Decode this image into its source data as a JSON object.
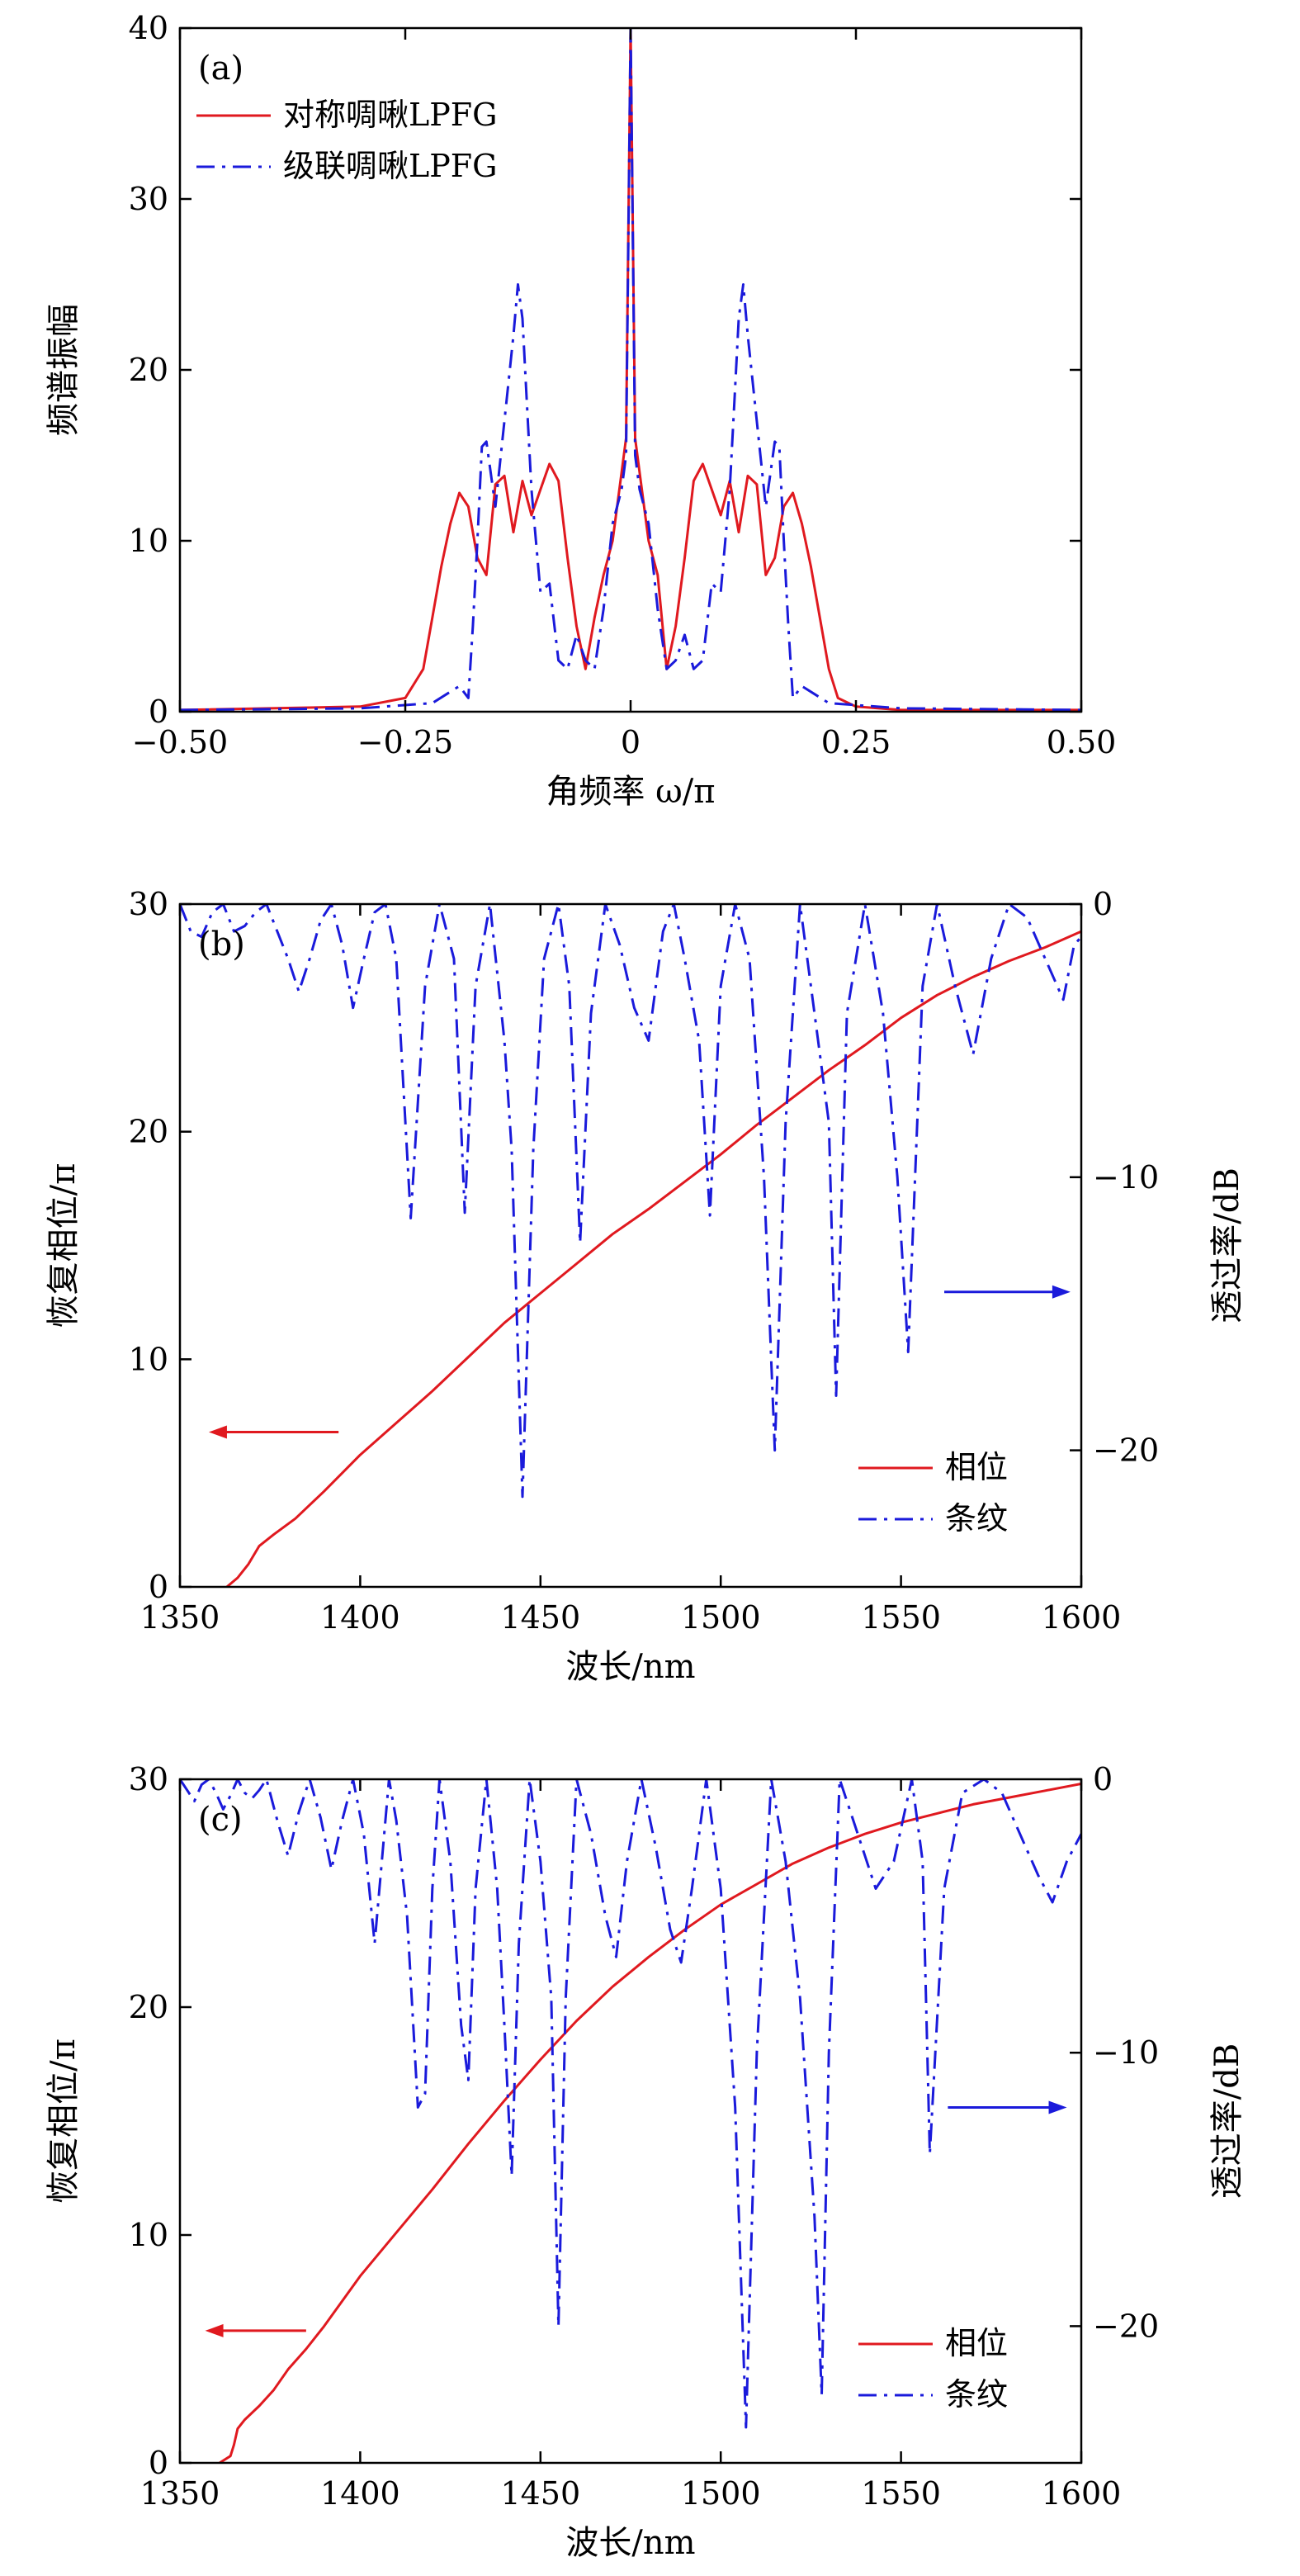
{
  "chart_data": [
    {
      "type": "line",
      "panel_label": "(a)",
      "title": "",
      "xlabel": "角频率 ω/π",
      "ylabel": "频谱振幅",
      "xlim": [
        -0.5,
        0.5
      ],
      "ylim": [
        0,
        40
      ],
      "xticks": [
        -0.5,
        -0.25,
        0,
        0.25,
        0.5
      ],
      "xtick_labels": [
        "−0.50",
        "−0.25",
        "0",
        "0.25",
        "0.50"
      ],
      "yticks": [
        0,
        10,
        20,
        30,
        40
      ],
      "ytick_labels": [
        "0",
        "10",
        "20",
        "30",
        "40"
      ],
      "legend_position": "top-left",
      "series": [
        {
          "name": "对称啁啾LPFG",
          "color": "#e0191f",
          "style": "solid",
          "x": [
            -0.5,
            -0.3,
            -0.25,
            -0.23,
            -0.22,
            -0.21,
            -0.2,
            -0.19,
            -0.18,
            -0.17,
            -0.16,
            -0.15,
            -0.14,
            -0.13,
            -0.12,
            -0.11,
            -0.1,
            -0.09,
            -0.08,
            -0.07,
            -0.06,
            -0.05,
            -0.04,
            -0.03,
            -0.02,
            -0.01,
            -0.005,
            0,
            0.005,
            0.01,
            0.02,
            0.03,
            0.04,
            0.05,
            0.06,
            0.07,
            0.08,
            0.09,
            0.1,
            0.11,
            0.12,
            0.13,
            0.14,
            0.15,
            0.16,
            0.17,
            0.18,
            0.19,
            0.2,
            0.21,
            0.22,
            0.23,
            0.25,
            0.3,
            0.5
          ],
          "values": [
            0.1,
            0.3,
            0.8,
            2.5,
            5.5,
            8.5,
            11,
            12.8,
            12,
            9,
            8,
            13.3,
            13.8,
            10.5,
            13.5,
            11.5,
            13,
            14.5,
            13.5,
            9,
            5,
            2.5,
            5.5,
            8,
            10,
            14,
            16,
            40,
            16,
            14,
            10,
            8,
            2.5,
            5,
            9,
            13.5,
            14.5,
            13,
            11.5,
            13.5,
            10.5,
            13.8,
            13.3,
            8,
            9,
            12,
            12.8,
            11,
            8.5,
            5.5,
            2.5,
            0.8,
            0.3,
            0.1,
            0.1
          ]
        },
        {
          "name": "级联啁啾LPFG",
          "color": "#1a1adb",
          "style": "dashdot",
          "x": [
            -0.5,
            -0.3,
            -0.22,
            -0.19,
            -0.18,
            -0.175,
            -0.17,
            -0.165,
            -0.16,
            -0.15,
            -0.14,
            -0.13,
            -0.125,
            -0.12,
            -0.115,
            -0.11,
            -0.105,
            -0.1,
            -0.09,
            -0.08,
            -0.07,
            -0.06,
            -0.05,
            -0.04,
            -0.03,
            -0.02,
            -0.01,
            -0.005,
            0,
            0.005,
            0.01,
            0.02,
            0.03,
            0.04,
            0.05,
            0.06,
            0.07,
            0.08,
            0.09,
            0.1,
            0.105,
            0.11,
            0.115,
            0.12,
            0.125,
            0.13,
            0.14,
            0.15,
            0.16,
            0.165,
            0.17,
            0.175,
            0.18,
            0.19,
            0.22,
            0.3,
            0.5
          ],
          "values": [
            0.1,
            0.2,
            0.5,
            1.5,
            0.8,
            5,
            10,
            15.5,
            15.8,
            12,
            17,
            22,
            25,
            23,
            18,
            13,
            10,
            7,
            7.5,
            3,
            2.5,
            4.5,
            3,
            2.5,
            6,
            11,
            13,
            15,
            40,
            15,
            13,
            11,
            6,
            2.5,
            3,
            4.5,
            2.5,
            3,
            7.5,
            7,
            10,
            13,
            18,
            23,
            25,
            22,
            17,
            12,
            15.8,
            15.5,
            10,
            5,
            0.8,
            1.5,
            0.5,
            0.2,
            0.1
          ]
        }
      ]
    },
    {
      "type": "line",
      "panel_label": "(b)",
      "title": "",
      "xlabel": "波长/nm",
      "ylabel": "恢复相位/π",
      "y2label": "透过率/dB",
      "xlim": [
        1350,
        1600
      ],
      "ylim": [
        0,
        30
      ],
      "y2lim": [
        -25,
        0
      ],
      "xticks": [
        1350,
        1400,
        1450,
        1500,
        1550,
        1600
      ],
      "xtick_labels": [
        "1350",
        "1400",
        "1450",
        "1500",
        "1550",
        "1600"
      ],
      "yticks": [
        0,
        10,
        20,
        30
      ],
      "ytick_labels": [
        "0",
        "10",
        "20",
        "30"
      ],
      "y2ticks": [
        0,
        -10,
        -20
      ],
      "y2tick_labels": [
        "0",
        "−10",
        "−20"
      ],
      "legend_position": "bottom-right",
      "arrows": [
        {
          "from_x": 1394,
          "to_x": 1358,
          "y": 6.8,
          "axis": "left",
          "color": "#e0191f"
        },
        {
          "from_x": 1562,
          "to_x": 1597,
          "y": -14.2,
          "axis": "right",
          "color": "#1a1adb"
        }
      ],
      "series": [
        {
          "name": "相位",
          "axis": "left",
          "color": "#e0191f",
          "style": "solid",
          "x": [
            1363,
            1366,
            1369,
            1372,
            1376,
            1382,
            1390,
            1400,
            1410,
            1420,
            1430,
            1440,
            1450,
            1460,
            1470,
            1480,
            1490,
            1500,
            1510,
            1520,
            1530,
            1540,
            1550,
            1560,
            1570,
            1580,
            1590,
            1600
          ],
          "values": [
            0,
            0.4,
            1.0,
            1.8,
            2.3,
            3.0,
            4.2,
            5.8,
            7.2,
            8.6,
            10.1,
            11.6,
            12.9,
            14.2,
            15.5,
            16.6,
            17.8,
            19.0,
            20.3,
            21.5,
            22.7,
            23.8,
            25.0,
            26.0,
            26.8,
            27.5,
            28.1,
            28.8
          ]
        },
        {
          "name": "条纹",
          "axis": "right",
          "color": "#1a1adb",
          "style": "dashdot",
          "x": [
            1350,
            1353,
            1356,
            1359,
            1362,
            1365,
            1368,
            1371,
            1374,
            1377,
            1380,
            1383,
            1386,
            1389,
            1392,
            1395,
            1398,
            1401,
            1404,
            1407,
            1410,
            1414,
            1418,
            1422,
            1426,
            1429,
            1432,
            1436,
            1440,
            1442,
            1445,
            1448,
            1451,
            1455,
            1458,
            1461,
            1464,
            1468,
            1472,
            1476,
            1480,
            1484,
            1487,
            1490,
            1494,
            1497,
            1500,
            1504,
            1508,
            1512,
            1515,
            1518,
            1522,
            1526,
            1530,
            1532,
            1535,
            1540,
            1545,
            1549,
            1552,
            1556,
            1560,
            1565,
            1570,
            1575,
            1580,
            1585,
            1590,
            1595,
            1598,
            1600
          ],
          "values": [
            0,
            -1,
            -1.2,
            -0.3,
            0,
            -1,
            -0.8,
            -0.3,
            0,
            -1,
            -2,
            -3.2,
            -2,
            -0.6,
            0,
            -1.5,
            -3.8,
            -2,
            -0.3,
            0,
            -2,
            -11.5,
            -3,
            0,
            -2,
            -11.3,
            -3,
            0,
            -5,
            -9,
            -21.7,
            -9,
            -2,
            0,
            -3,
            -12.4,
            -4,
            0,
            -1.5,
            -3.8,
            -5,
            -1,
            0,
            -2,
            -5,
            -11.4,
            -3,
            0,
            -2,
            -10,
            -20,
            -8,
            0,
            -4,
            -8,
            -18,
            -4,
            0,
            -4,
            -10,
            -16.4,
            -3,
            0,
            -3,
            -5.5,
            -2,
            0,
            -0.5,
            -2,
            -3.5,
            -1.5,
            -1.2
          ]
        }
      ]
    },
    {
      "type": "line",
      "panel_label": "(c)",
      "title": "",
      "xlabel": "波长/nm",
      "ylabel": "恢复相位/π",
      "y2label": "透过率/dB",
      "xlim": [
        1350,
        1600
      ],
      "ylim": [
        0,
        30
      ],
      "y2lim": [
        -25,
        0
      ],
      "xticks": [
        1350,
        1400,
        1450,
        1500,
        1550,
        1600
      ],
      "xtick_labels": [
        "1350",
        "1400",
        "1450",
        "1500",
        "1550",
        "1600"
      ],
      "yticks": [
        0,
        10,
        20,
        30
      ],
      "ytick_labels": [
        "0",
        "10",
        "20",
        "30"
      ],
      "y2ticks": [
        0,
        -10,
        -20
      ],
      "y2tick_labels": [
        "0",
        "−10",
        "−20"
      ],
      "legend_position": "bottom-right",
      "arrows": [
        {
          "from_x": 1385,
          "to_x": 1357,
          "y": 5.8,
          "axis": "left",
          "color": "#e0191f"
        },
        {
          "from_x": 1563,
          "to_x": 1596,
          "y": -12.0,
          "axis": "right",
          "color": "#1a1adb"
        }
      ],
      "series": [
        {
          "name": "相位",
          "axis": "left",
          "color": "#e0191f",
          "style": "solid",
          "x": [
            1361,
            1364,
            1365,
            1366,
            1368,
            1372,
            1376,
            1380,
            1385,
            1390,
            1400,
            1410,
            1420,
            1430,
            1440,
            1450,
            1460,
            1470,
            1480,
            1490,
            1500,
            1510,
            1520,
            1530,
            1540,
            1550,
            1560,
            1570,
            1580,
            1590,
            1600
          ],
          "values": [
            0,
            0.3,
            0.8,
            1.5,
            1.9,
            2.5,
            3.2,
            4.1,
            5.0,
            6.0,
            8.2,
            10.1,
            12.0,
            14.0,
            15.9,
            17.7,
            19.4,
            20.9,
            22.2,
            23.4,
            24.5,
            25.4,
            26.3,
            27.0,
            27.6,
            28.1,
            28.5,
            28.9,
            29.2,
            29.5,
            29.8
          ]
        },
        {
          "name": "条纹",
          "axis": "right",
          "color": "#1a1adb",
          "style": "dashdot",
          "x": [
            1350,
            1352,
            1354,
            1356,
            1358,
            1360,
            1362,
            1364,
            1366,
            1368,
            1370,
            1372,
            1374,
            1377,
            1380,
            1383,
            1386,
            1389,
            1392,
            1395,
            1398,
            1401,
            1404,
            1406,
            1408,
            1410,
            1413,
            1416,
            1418,
            1420,
            1422,
            1425,
            1428,
            1430,
            1432,
            1435,
            1438,
            1440,
            1442,
            1444,
            1447,
            1450,
            1453,
            1455,
            1457,
            1460,
            1464,
            1468,
            1471,
            1474,
            1478,
            1482,
            1486,
            1489,
            1492,
            1496,
            1500,
            1504,
            1507,
            1510,
            1514,
            1518,
            1522,
            1526,
            1528,
            1530,
            1533,
            1538,
            1543,
            1548,
            1553,
            1556,
            1558,
            1562,
            1567,
            1573,
            1578,
            1583,
            1588,
            1592,
            1596,
            1600
          ],
          "values": [
            0,
            -0.4,
            -0.8,
            -0.2,
            0,
            -0.5,
            -1.1,
            -0.6,
            0,
            -0.5,
            -0.7,
            -0.4,
            0,
            -1.5,
            -2.8,
            -1.2,
            0,
            -1.4,
            -3.3,
            -1.5,
            0,
            -2,
            -6,
            -3,
            0,
            -1.5,
            -5,
            -12,
            -11.5,
            -4,
            0,
            -3,
            -9,
            -11,
            -4,
            0,
            -4,
            -9,
            -14.5,
            -6,
            0,
            -3,
            -8,
            -20,
            -8,
            0,
            -2,
            -5,
            -6.5,
            -3,
            0,
            -2.5,
            -5.5,
            -6.7,
            -4,
            0,
            -4,
            -12,
            -23.7,
            -10,
            0,
            -3,
            -8,
            -16,
            -22.5,
            -10,
            0,
            -2,
            -4,
            -3,
            0,
            -3,
            -13.7,
            -4,
            -0.5,
            0,
            -0.5,
            -2,
            -3.5,
            -4.5,
            -3,
            -2
          ]
        }
      ]
    }
  ]
}
